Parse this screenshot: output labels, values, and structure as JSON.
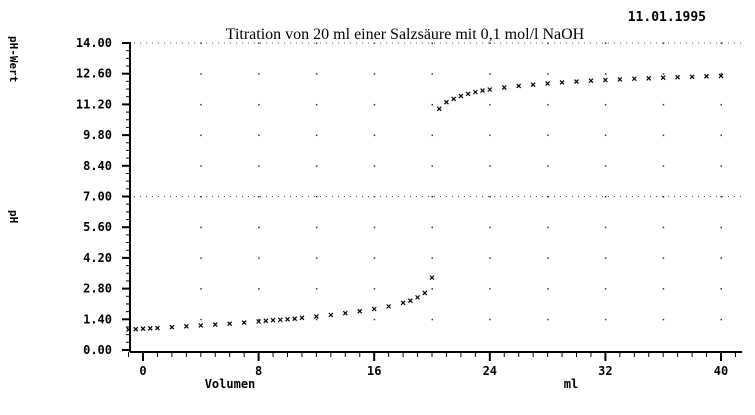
{
  "chart_data": {
    "type": "scatter",
    "title": "Titration von 20 ml  einer Salzsäure mit 0,1 mol/l NaOH",
    "date": "11.01.1995",
    "xlabel": "Volumen",
    "xunit": "ml",
    "ylabel_top": "pH-Wert",
    "ylabel_mid": "pH",
    "xlim": [
      -1,
      41
    ],
    "ylim": [
      0,
      14
    ],
    "xticks": [
      "0",
      "8",
      "16",
      "24",
      "32",
      "40"
    ],
    "yticks": [
      "0.00",
      "1.40",
      "2.80",
      "4.20",
      "5.60",
      "7.00",
      "8.40",
      "9.80",
      "11.20",
      "12.60",
      "14.00"
    ],
    "grid": true,
    "marker": "×",
    "series": [
      {
        "values": [
          [
            -1.0,
            0.93
          ],
          [
            -0.5,
            0.95
          ],
          [
            0.0,
            0.97
          ],
          [
            0.5,
            0.99
          ],
          [
            1.0,
            1.0
          ],
          [
            2.0,
            1.04
          ],
          [
            3.0,
            1.08
          ],
          [
            4.0,
            1.12
          ],
          [
            5.0,
            1.16
          ],
          [
            6.0,
            1.2
          ],
          [
            7.0,
            1.25
          ],
          [
            8.0,
            1.3
          ],
          [
            8.5,
            1.33
          ],
          [
            9.0,
            1.36
          ],
          [
            9.5,
            1.38
          ],
          [
            10.0,
            1.4
          ],
          [
            10.5,
            1.43
          ],
          [
            11.0,
            1.47
          ],
          [
            12.0,
            1.53
          ],
          [
            13.0,
            1.6
          ],
          [
            14.0,
            1.68
          ],
          [
            15.0,
            1.77
          ],
          [
            16.0,
            1.87
          ],
          [
            17.0,
            1.99
          ],
          [
            18.0,
            2.15
          ],
          [
            18.5,
            2.25
          ],
          [
            19.0,
            2.4
          ],
          [
            19.5,
            2.6
          ],
          [
            20.0,
            3.3
          ],
          [
            20.5,
            11.0
          ],
          [
            21.0,
            11.3
          ],
          [
            21.5,
            11.45
          ],
          [
            22.0,
            11.58
          ],
          [
            22.5,
            11.68
          ],
          [
            23.0,
            11.76
          ],
          [
            23.5,
            11.83
          ],
          [
            24.0,
            11.88
          ],
          [
            25.0,
            11.97
          ],
          [
            26.0,
            12.04
          ],
          [
            27.0,
            12.1
          ],
          [
            28.0,
            12.15
          ],
          [
            29.0,
            12.2
          ],
          [
            30.0,
            12.24
          ],
          [
            31.0,
            12.28
          ],
          [
            32.0,
            12.31
          ],
          [
            33.0,
            12.34
          ],
          [
            34.0,
            12.37
          ],
          [
            35.0,
            12.39
          ],
          [
            36.0,
            12.42
          ],
          [
            37.0,
            12.44
          ],
          [
            38.0,
            12.46
          ],
          [
            39.0,
            12.48
          ],
          [
            40.0,
            12.5
          ]
        ]
      }
    ]
  }
}
